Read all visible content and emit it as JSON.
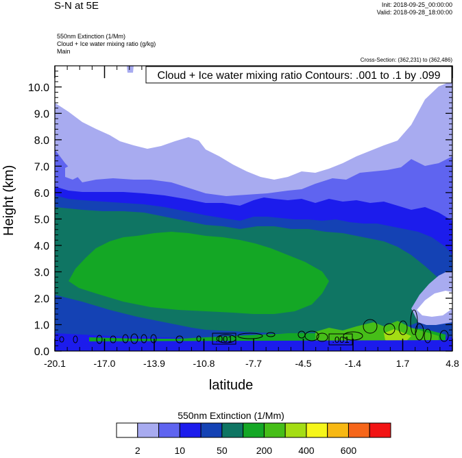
{
  "header": {
    "main_title": "S-N at 5E",
    "init": "Init: 2018-09-25_00:00:00",
    "valid": "Valid: 2018-09-28_18:00:00",
    "fields": [
      "550nm Extinction   (1/Mm)",
      "Cloud + Ice water mixing ratio   (g/kg)",
      "Main"
    ],
    "cross_section": "Cross-Section: (362,231) to (362,486)"
  },
  "chart_data": {
    "type": "heatmap",
    "title": "S-N at 5E",
    "xlabel": "latitude",
    "ylabel": "Height (km)",
    "x_ticks": [
      "-20.1",
      "-17.0",
      "-13.9",
      "-10.8",
      "-7.7",
      "-4.5",
      "-1.4",
      "1.7",
      "4.8"
    ],
    "xlim": [
      -20.1,
      4.8
    ],
    "y_ticks": [
      "0.0",
      "1.0",
      "2.0",
      "3.0",
      "4.0",
      "5.0",
      "6.0",
      "7.0",
      "8.0",
      "9.0",
      "10.0"
    ],
    "ylim": [
      0,
      10.8
    ],
    "contour_legend": "Cloud + Ice water mixing ratio Contours: .001 to .1 by .099",
    "contour_labels": [
      ".001",
      ".001"
    ],
    "colorbar": {
      "title": "550nm Extinction  (1/Mm)",
      "colors": [
        "#ffffff",
        "#a8abf0",
        "#5f64f0",
        "#1c1cec",
        "#1442b4",
        "#0f7563",
        "#14a725",
        "#46be18",
        "#a4dd14",
        "#f6f61a",
        "#f7b814",
        "#f6661a",
        "#f21414"
      ],
      "labels": [
        "2",
        "10",
        "50",
        "200",
        "400",
        "600"
      ]
    }
  }
}
